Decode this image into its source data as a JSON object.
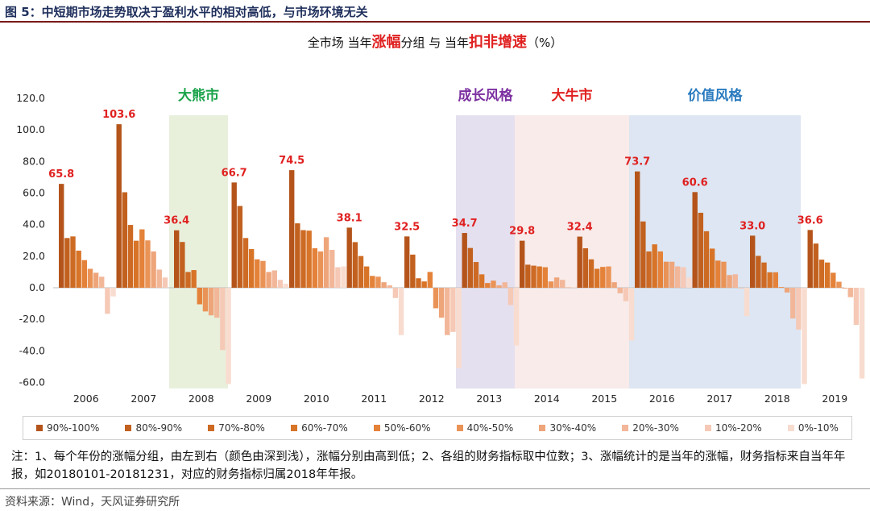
{
  "header": {
    "figure_title": "图 5：中短期市场走势取决于盈利水平的相对高低，与市场环境无关"
  },
  "chart_title": {
    "part1": "全市场  当年",
    "hl1": "涨幅",
    "part2": "分组  与  当年",
    "hl2": "扣非增速",
    "part3": "（%）"
  },
  "chart_data": {
    "type": "bar",
    "categories": [
      "2006",
      "2007",
      "2008",
      "2009",
      "2010",
      "2011",
      "2012",
      "2013",
      "2014",
      "2015",
      "2016",
      "2017",
      "2018",
      "2019"
    ],
    "series": [
      {
        "name": "90%-100%",
        "color": "#b4541b",
        "values": [
          65.8,
          103.6,
          36.4,
          66.7,
          74.5,
          38.1,
          32.5,
          34.7,
          29.8,
          32.4,
          73.7,
          60.6,
          33.0,
          36.6
        ]
      },
      {
        "name": "80%-90%",
        "color": "#c2611f",
        "values": [
          31.5,
          60.5,
          29.0,
          51.8,
          40.8,
          28.9,
          21.0,
          25.2,
          14.6,
          25.0,
          42.0,
          47.5,
          20.2,
          28.0
        ]
      },
      {
        "name": "70%-80%",
        "color": "#cd6a24",
        "values": [
          32.5,
          39.8,
          10.0,
          31.5,
          36.5,
          20.1,
          6.0,
          16.3,
          14.0,
          18.0,
          23.0,
          35.8,
          16.0,
          17.8
        ]
      },
      {
        "name": "60%-70%",
        "color": "#d87428",
        "values": [
          23.5,
          29.8,
          11.2,
          24.5,
          36.2,
          13.5,
          4.0,
          8.5,
          13.5,
          12.0,
          27.5,
          24.8,
          9.8,
          16.0
        ]
      },
      {
        "name": "50%-60%",
        "color": "#e4823a",
        "values": [
          17.5,
          37.0,
          -10.5,
          18.0,
          25.0,
          7.5,
          10.0,
          3.0,
          13.0,
          13.2,
          23.0,
          17.2,
          9.8,
          9.5
        ]
      },
      {
        "name": "40%-50%",
        "color": "#ea9357",
        "values": [
          12.0,
          30.0,
          -15.0,
          17.0,
          23.0,
          7.0,
          -13.0,
          4.5,
          4.0,
          13.5,
          16.5,
          16.5,
          0.5,
          3.8
        ]
      },
      {
        "name": "30%-40%",
        "color": "#eea57a",
        "values": [
          9.5,
          23.0,
          -17.5,
          10.0,
          32.0,
          3.5,
          -19.0,
          1.5,
          6.5,
          3.5,
          16.5,
          8.0,
          -3.0,
          -0.5
        ]
      },
      {
        "name": "20%-30%",
        "color": "#f2b699",
        "values": [
          7.0,
          11.5,
          -19.0,
          11.0,
          24.0,
          1.5,
          -30.0,
          3.5,
          5.0,
          -3.5,
          13.5,
          8.5,
          -19.5,
          -6.0
        ]
      },
      {
        "name": "10%-20%",
        "color": "#f5c9b6",
        "values": [
          -16.5,
          6.5,
          -39.5,
          5.0,
          13.0,
          -6.5,
          -28.0,
          -11.0,
          0.5,
          -8.5,
          13.0,
          -0.5,
          -26.5,
          -23.5
        ]
      },
      {
        "name": "0%-10%",
        "color": "#f8dccf",
        "values": [
          -5.5,
          0.0,
          -61.0,
          2.5,
          13.5,
          -30.0,
          -51.0,
          -36.5,
          0.5,
          -33.5,
          6.5,
          -18.0,
          -61.0,
          -57.5
        ]
      }
    ],
    "top_labels": [
      "65.8",
      "103.6",
      "36.4",
      "66.7",
      "74.5",
      "38.1",
      "32.5",
      "34.7",
      "29.8",
      "32.4",
      "73.7",
      "60.6",
      "33.0",
      "36.6"
    ],
    "y_ticks": [
      "120.0",
      "100.0",
      "80.0",
      "60.0",
      "40.0",
      "20.0",
      "0.0",
      "-20.0",
      "-40.0",
      "-60.0"
    ],
    "ylim": [
      -62,
      120
    ],
    "label_color": "#e02020",
    "grid": false,
    "legend_position": "bottom",
    "regions": [
      {
        "label": "大熊市",
        "from": "2008",
        "to": "2008",
        "fill": "#e8f0dc",
        "text_color": "#1aa34a"
      },
      {
        "label": "成长风格",
        "from": "2013",
        "to": "2013",
        "fill": "#e5e0ef",
        "text_color": "#7b2fa0"
      },
      {
        "label": "大牛市",
        "from": "2014",
        "to": "2015",
        "fill": "#f8ebea",
        "text_color": "#e02020"
      },
      {
        "label": "价值风格",
        "from": "2016",
        "to": "2018",
        "fill": "#dde6f2",
        "text_color": "#2a7bbf"
      }
    ]
  },
  "legend": [
    {
      "label": "90%-100%",
      "color": "#b4541b"
    },
    {
      "label": "80%-90%",
      "color": "#c2611f"
    },
    {
      "label": "70%-80%",
      "color": "#cd6a24"
    },
    {
      "label": "60%-70%",
      "color": "#d87428"
    },
    {
      "label": "50%-60%",
      "color": "#e4823a"
    },
    {
      "label": "40%-50%",
      "color": "#ea9357"
    },
    {
      "label": "30%-40%",
      "color": "#eea57a"
    },
    {
      "label": "20%-30%",
      "color": "#f2b699"
    },
    {
      "label": "10%-20%",
      "color": "#f5c9b6"
    },
    {
      "label": "0%-10%",
      "color": "#f8dccf"
    }
  ],
  "note": "注：1、每个年份的涨幅分组，由左到右（颜色由深到浅），涨幅分别由高到低；2、各组的财务指标取中位数；3、涨幅统计的是当年的涨幅，财务指标来自当年年报，如20180101-20181231，对应的财务指标归属2018年年报。",
  "source": "资料来源：Wind，天风证券研究所"
}
